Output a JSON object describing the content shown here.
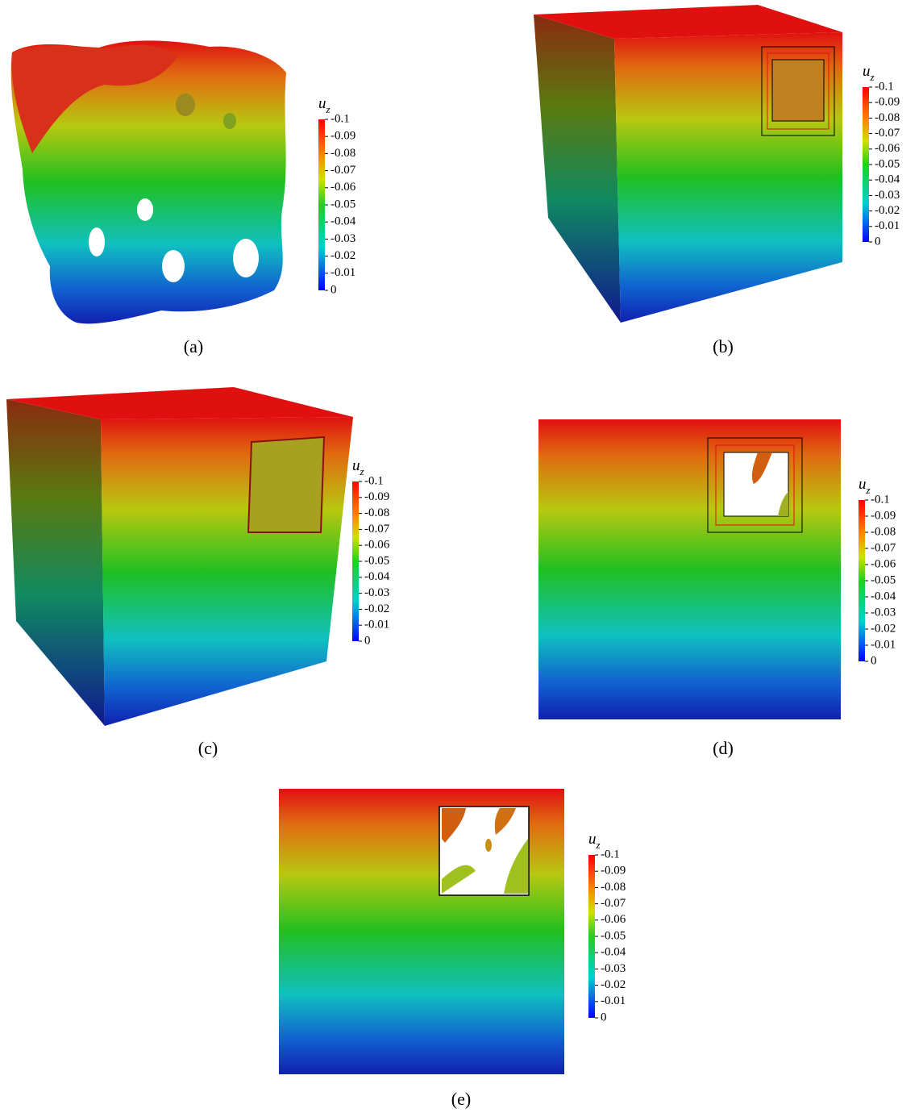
{
  "panels": [
    {
      "caption": "(a)",
      "colorbar": {
        "symbol": "u",
        "subscript": "z",
        "ticks": [
          "-0.1",
          "-0.09",
          "-0.08",
          "-0.07",
          "-0.06",
          "-0.05",
          "-0.04",
          "-0.03",
          "-0.02",
          "-0.01",
          "0"
        ]
      }
    },
    {
      "caption": "(b)",
      "colorbar": {
        "symbol": "u",
        "subscript": "z",
        "ticks": [
          "-0.1",
          "-0.09",
          "-0.08",
          "-0.07",
          "-0.06",
          "-0.05",
          "-0.04",
          "-0.03",
          "-0.02",
          "-0.01",
          "0"
        ]
      }
    },
    {
      "caption": "(c)",
      "colorbar": {
        "symbol": "u",
        "subscript": "z",
        "ticks": [
          "-0.1",
          "-0.09",
          "-0.08",
          "-0.07",
          "-0.06",
          "-0.05",
          "-0.04",
          "-0.03",
          "-0.02",
          "-0.01",
          "0"
        ]
      }
    },
    {
      "caption": "(d)",
      "colorbar": {
        "symbol": "u",
        "subscript": "z",
        "ticks": [
          "-0.1",
          "-0.09",
          "-0.08",
          "-0.07",
          "-0.06",
          "-0.05",
          "-0.04",
          "-0.03",
          "-0.02",
          "-0.01",
          "0"
        ]
      }
    },
    {
      "caption": "(e)",
      "colorbar": {
        "symbol": "u",
        "subscript": "z",
        "ticks": [
          "-0.1",
          "-0.09",
          "-0.08",
          "-0.07",
          "-0.06",
          "-0.05",
          "-0.04",
          "-0.03",
          "-0.02",
          "-0.01",
          "0"
        ]
      }
    }
  ]
}
